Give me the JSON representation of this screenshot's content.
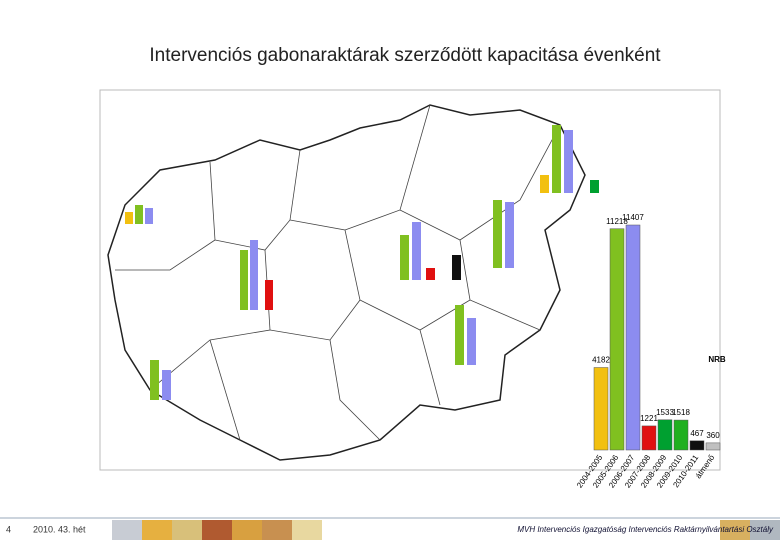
{
  "header": {
    "title": "Intervenciós gabonaraktárak szerződött kapacitása évenként"
  },
  "chart_data": {
    "type": "bar",
    "categories": [
      "2004-2005",
      "2005-2006",
      "2006-2007",
      "2007-2008",
      "2008-2009",
      "2009-2010",
      "2010-2011",
      "átmenő"
    ],
    "values": [
      4182,
      11218,
      11407,
      1221,
      1533,
      1518,
      467,
      360
    ],
    "colors": [
      "#f2c010",
      "#80c020",
      "#8c8cf0",
      "#e01010",
      "#00a030",
      "#20b020",
      "#101010",
      "#c0c0c0"
    ],
    "ylim": [
      0,
      11407
    ],
    "annotation": "NRB"
  },
  "footer": {
    "page": "4",
    "date": "2010. 43. hét",
    "org": "MVH Intervenciós Igazgatóság Intervenciós Raktárnyilvántartási Osztály"
  }
}
